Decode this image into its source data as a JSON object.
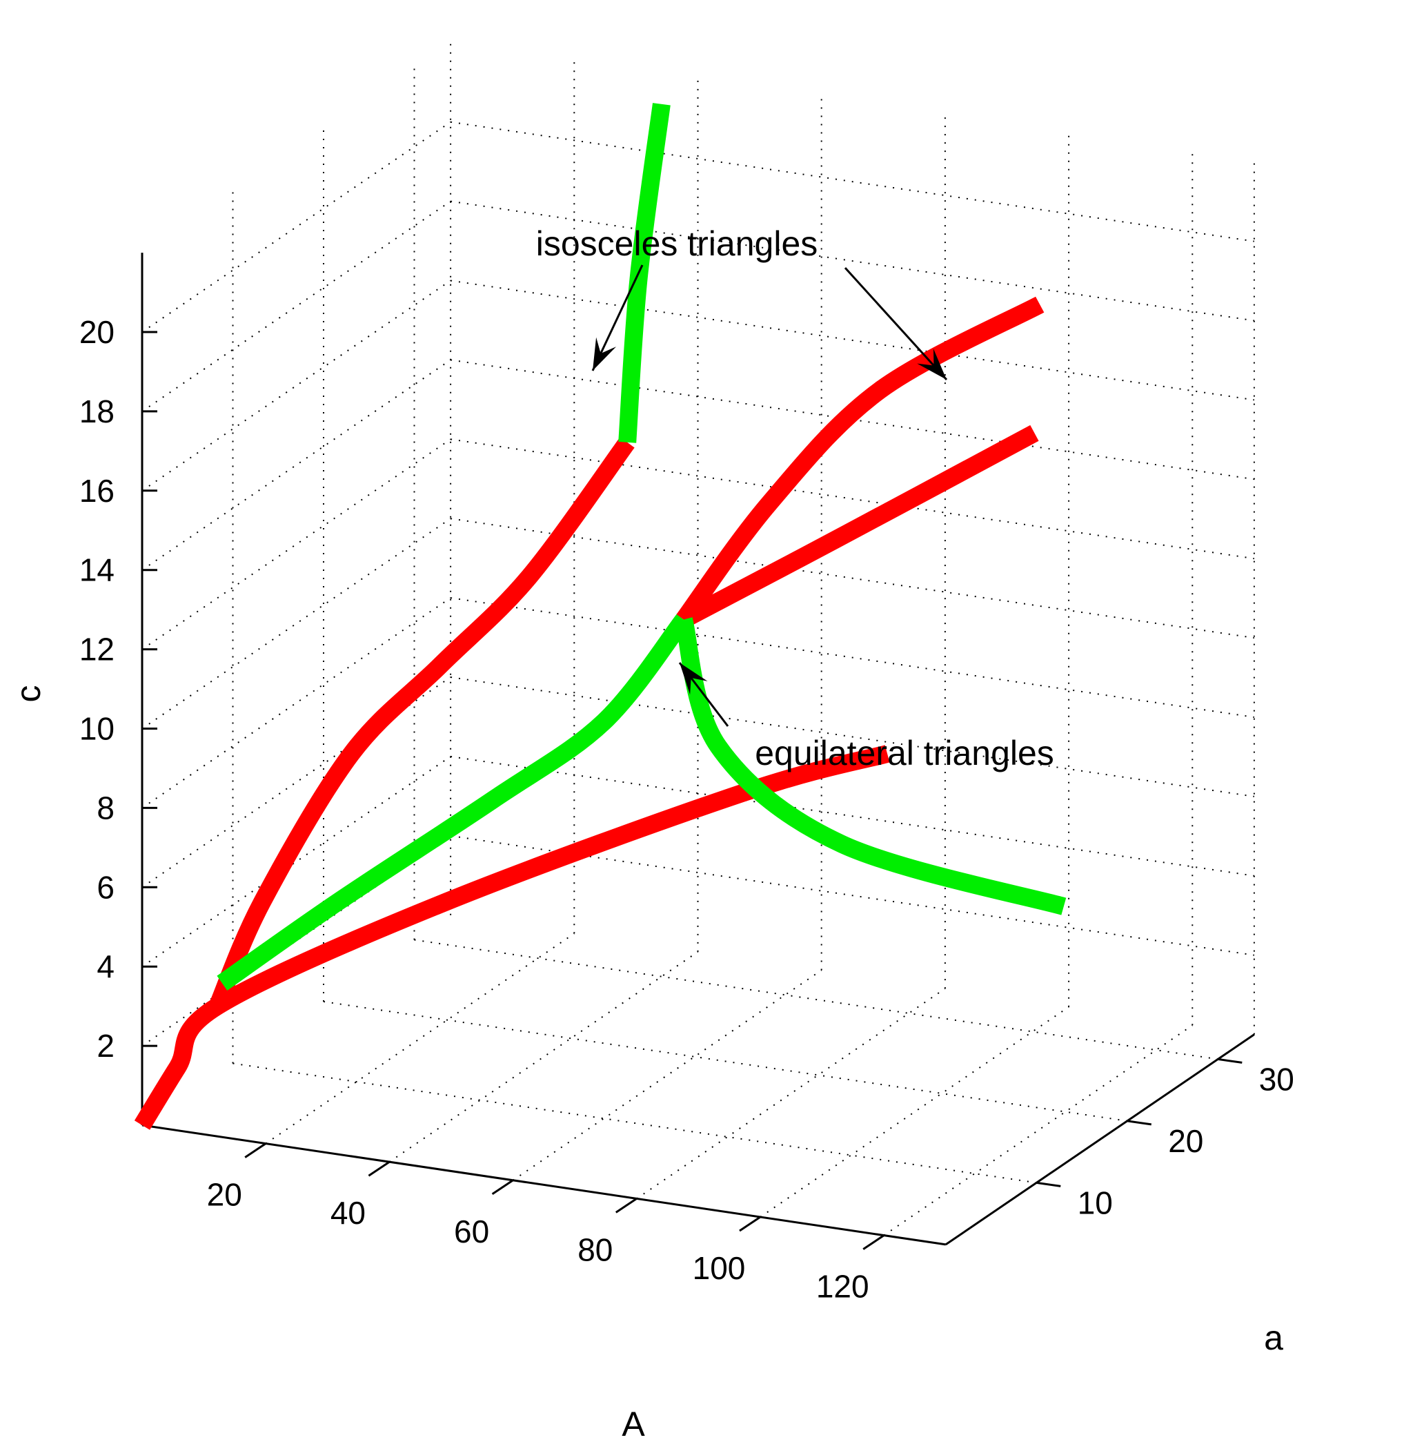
{
  "chart_data": {
    "type": "line",
    "projection": "3d",
    "title": "",
    "xlabel": "A",
    "ylabel": "a",
    "zlabel": "c",
    "xlim": [
      0,
      130
    ],
    "ylim": [
      0,
      34
    ],
    "zlim": [
      0,
      22
    ],
    "x_ticks": [
      20,
      40,
      60,
      80,
      100,
      120
    ],
    "y_ticks": [
      10,
      20,
      30
    ],
    "z_ticks": [
      2,
      4,
      6,
      8,
      10,
      12,
      14,
      16,
      18,
      20
    ],
    "grid": true,
    "colors": {
      "red": "#ff0000",
      "green": "#00ee00"
    },
    "series": [
      {
        "color": "red",
        "points": [
          [
            0,
            0,
            0
          ],
          [
            5,
            0.5,
            1.5
          ],
          [
            10,
            1.5,
            3
          ],
          [
            40,
            6,
            5.6
          ],
          [
            80,
            11.8,
            8.4
          ],
          [
            100,
            14,
            9.5
          ]
        ]
      },
      {
        "color": "red",
        "points": [
          [
            10,
            1.5,
            3
          ],
          [
            15,
            3,
            5.5
          ],
          [
            25,
            6,
            9
          ],
          [
            35,
            9,
            11
          ],
          [
            45,
            12,
            13
          ],
          [
            55,
            16,
            16
          ]
        ]
      },
      {
        "color": "green",
        "points": [
          [
            55,
            16,
            16
          ],
          [
            48,
            22,
            19
          ],
          [
            40,
            30,
            22
          ]
        ]
      },
      {
        "color": "green",
        "points": [
          [
            10,
            2,
            3.5
          ],
          [
            25,
            4.5,
            5.5
          ],
          [
            45,
            8,
            8
          ],
          [
            60,
            10,
            10
          ],
          [
            70,
            12,
            12.5
          ]
        ]
      },
      {
        "color": "red",
        "points": [
          [
            70,
            12,
            12.5
          ],
          [
            78,
            16,
            15
          ],
          [
            90,
            20,
            17.5
          ],
          [
            110,
            24,
            19.5
          ]
        ]
      },
      {
        "color": "red",
        "points": [
          [
            70,
            12,
            12.5
          ],
          [
            90,
            15,
            14.5
          ],
          [
            115,
            20,
            17
          ]
        ]
      },
      {
        "color": "green",
        "points": [
          [
            70,
            12,
            12.5
          ],
          [
            80,
            9,
            10
          ],
          [
            100,
            9,
            8
          ],
          [
            130,
            13,
            6.5
          ]
        ]
      }
    ],
    "annotations": [
      {
        "text": "isosceles triangles",
        "targets": 2
      },
      {
        "text": "equilateral triangles",
        "targets": 1
      }
    ]
  }
}
